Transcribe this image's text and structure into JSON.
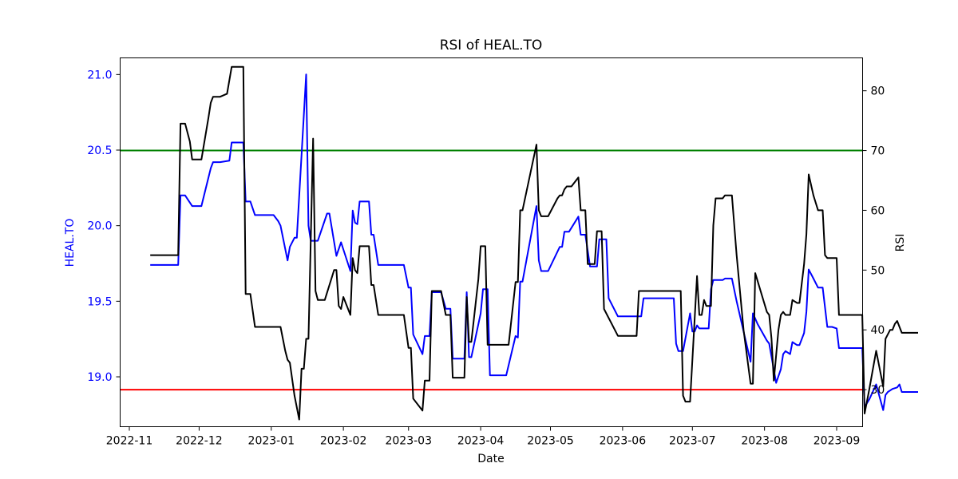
{
  "chart_data": {
    "type": "line",
    "title": "RSI of HEAL.TO",
    "xlabel": "Date",
    "ylabel_left": "HEAL.TO",
    "ylabel_right": "RSI",
    "x_ticks": [
      "2022-11",
      "2022-12",
      "2023-01",
      "2023-02",
      "2023-03",
      "2023-04",
      "2023-05",
      "2023-06",
      "2023-07",
      "2023-08",
      "2023-09"
    ],
    "y_left_ticks": [
      "19.0",
      "19.5",
      "20.0",
      "20.5",
      "21.0"
    ],
    "y_right_ticks": [
      "30",
      "40",
      "50",
      "60",
      "70",
      "80"
    ],
    "ylim_left": [
      18.67,
      21.11
    ],
    "ylim_right": [
      23.8,
      85.5
    ],
    "colors": {
      "price": "#0000ff",
      "rsi": "#000000",
      "overbought": "#008000",
      "oversold": "#ff0000",
      "left_axis_text": "#0000ff"
    },
    "thresholds": {
      "overbought": 70,
      "oversold": 30
    },
    "price": [
      [
        "2022-11-10",
        19.74
      ],
      [
        "2022-11-22",
        19.74
      ],
      [
        "2022-11-23",
        20.2
      ],
      [
        "2022-11-25",
        20.2
      ],
      [
        "2022-11-28",
        20.13
      ],
      [
        "2022-12-02",
        20.13
      ],
      [
        "2022-12-06",
        20.38
      ],
      [
        "2022-12-07",
        20.42
      ],
      [
        "2022-12-10",
        20.42
      ],
      [
        "2022-12-14",
        20.43
      ],
      [
        "2022-12-15",
        20.55
      ],
      [
        "2022-12-20",
        20.55
      ],
      [
        "2022-12-21",
        20.16
      ],
      [
        "2022-12-23",
        20.16
      ],
      [
        "2022-12-25",
        20.07
      ],
      [
        "2023-01-02",
        20.07
      ],
      [
        "2023-01-04",
        20.03
      ],
      [
        "2023-01-05",
        20.0
      ],
      [
        "2023-01-08",
        19.77
      ],
      [
        "2023-01-09",
        19.86
      ],
      [
        "2023-01-11",
        19.92
      ],
      [
        "2023-01-12",
        19.92
      ],
      [
        "2023-01-16",
        21.0
      ],
      [
        "2023-01-17",
        20.0
      ],
      [
        "2023-01-18",
        19.9
      ],
      [
        "2023-01-21",
        19.9
      ],
      [
        "2023-01-25",
        20.08
      ],
      [
        "2023-01-26",
        20.08
      ],
      [
        "2023-01-29",
        19.8
      ],
      [
        "2023-01-31",
        19.89
      ],
      [
        "2023-02-04",
        19.7
      ],
      [
        "2023-02-05",
        20.1
      ],
      [
        "2023-02-06",
        20.02
      ],
      [
        "2023-02-07",
        20.01
      ],
      [
        "2023-02-08",
        20.16
      ],
      [
        "2023-02-12",
        20.16
      ],
      [
        "2023-02-13",
        19.94
      ],
      [
        "2023-02-14",
        19.94
      ],
      [
        "2023-02-16",
        19.74
      ],
      [
        "2023-02-27",
        19.74
      ],
      [
        "2023-03-01",
        19.59
      ],
      [
        "2023-03-02",
        19.59
      ],
      [
        "2023-03-03",
        19.28
      ],
      [
        "2023-03-07",
        19.15
      ],
      [
        "2023-03-08",
        19.27
      ],
      [
        "2023-03-10",
        19.27
      ],
      [
        "2023-03-11",
        19.56
      ],
      [
        "2023-03-15",
        19.56
      ],
      [
        "2023-03-17",
        19.45
      ],
      [
        "2023-03-19",
        19.45
      ],
      [
        "2023-03-20",
        19.12
      ],
      [
        "2023-03-25",
        19.12
      ],
      [
        "2023-03-26",
        19.56
      ],
      [
        "2023-03-27",
        19.13
      ],
      [
        "2023-03-28",
        19.13
      ],
      [
        "2023-04-01",
        19.42
      ],
      [
        "2023-04-02",
        19.58
      ],
      [
        "2023-04-04",
        19.58
      ],
      [
        "2023-04-05",
        19.01
      ],
      [
        "2023-04-12",
        19.01
      ],
      [
        "2023-04-16",
        19.27
      ],
      [
        "2023-04-17",
        19.26
      ],
      [
        "2023-04-18",
        19.63
      ],
      [
        "2023-04-19",
        19.63
      ],
      [
        "2023-04-25",
        20.13
      ],
      [
        "2023-04-26",
        19.77
      ],
      [
        "2023-04-27",
        19.7
      ],
      [
        "2023-04-30",
        19.7
      ],
      [
        "2023-05-05",
        19.86
      ],
      [
        "2023-05-06",
        19.86
      ],
      [
        "2023-05-07",
        19.96
      ],
      [
        "2023-05-09",
        19.96
      ],
      [
        "2023-05-13",
        20.06
      ],
      [
        "2023-05-14",
        19.94
      ],
      [
        "2023-05-16",
        19.94
      ],
      [
        "2023-05-18",
        19.73
      ],
      [
        "2023-05-21",
        19.73
      ],
      [
        "2023-05-22",
        19.91
      ],
      [
        "2023-05-25",
        19.91
      ],
      [
        "2023-05-26",
        19.52
      ],
      [
        "2023-05-30",
        19.4
      ],
      [
        "2023-06-09",
        19.4
      ],
      [
        "2023-06-10",
        19.52
      ],
      [
        "2023-06-23",
        19.52
      ],
      [
        "2023-06-24",
        19.22
      ],
      [
        "2023-06-25",
        19.17
      ],
      [
        "2023-06-27",
        19.17
      ],
      [
        "2023-06-30",
        19.42
      ],
      [
        "2023-07-01",
        19.3
      ],
      [
        "2023-07-02",
        19.3
      ],
      [
        "2023-07-03",
        19.34
      ],
      [
        "2023-07-04",
        19.32
      ],
      [
        "2023-07-08",
        19.32
      ],
      [
        "2023-07-09",
        19.58
      ],
      [
        "2023-07-10",
        19.64
      ],
      [
        "2023-07-14",
        19.64
      ],
      [
        "2023-07-15",
        19.65
      ],
      [
        "2023-07-18",
        19.65
      ],
      [
        "2023-07-20",
        19.5
      ],
      [
        "2023-07-23",
        19.3
      ],
      [
        "2023-07-26",
        19.1
      ],
      [
        "2023-07-27",
        19.42
      ],
      [
        "2023-07-29",
        19.35
      ],
      [
        "2023-08-02",
        19.24
      ],
      [
        "2023-08-03",
        19.22
      ],
      [
        "2023-08-06",
        18.96
      ],
      [
        "2023-08-08",
        19.05
      ],
      [
        "2023-08-09",
        19.15
      ],
      [
        "2023-08-10",
        19.17
      ],
      [
        "2023-08-12",
        19.15
      ],
      [
        "2023-08-13",
        19.23
      ],
      [
        "2023-08-15",
        19.21
      ],
      [
        "2023-08-16",
        19.21
      ],
      [
        "2023-08-18",
        19.29
      ],
      [
        "2023-08-19",
        19.43
      ],
      [
        "2023-08-20",
        19.71
      ],
      [
        "2023-08-22",
        19.65
      ],
      [
        "2023-08-24",
        19.59
      ],
      [
        "2023-08-26",
        19.59
      ],
      [
        "2023-08-28",
        19.33
      ],
      [
        "2023-08-30",
        19.33
      ],
      [
        "2023-09-01",
        19.32
      ],
      [
        "2023-09-02",
        19.19
      ],
      [
        "2023-09-12",
        19.19
      ],
      [
        "2023-09-13",
        18.8
      ],
      [
        "2023-09-15",
        18.85
      ],
      [
        "2023-09-18",
        18.95
      ],
      [
        "2023-09-21",
        18.78
      ],
      [
        "2023-09-22",
        18.88
      ],
      [
        "2023-09-23",
        18.9
      ],
      [
        "2023-09-25",
        18.92
      ],
      [
        "2023-09-27",
        18.93
      ],
      [
        "2023-09-28",
        18.95
      ],
      [
        "2023-09-29",
        18.9
      ],
      [
        "2023-10-06",
        18.9
      ]
    ],
    "rsi": [
      [
        "2022-11-10",
        52.5
      ],
      [
        "2022-11-22",
        52.5
      ],
      [
        "2022-11-23",
        74.5
      ],
      [
        "2022-11-25",
        74.5
      ],
      [
        "2022-11-27",
        71.5
      ],
      [
        "2022-11-28",
        68.5
      ],
      [
        "2022-12-02",
        68.5
      ],
      [
        "2022-12-05",
        75.5
      ],
      [
        "2022-12-06",
        78.0
      ],
      [
        "2022-12-07",
        79.0
      ],
      [
        "2022-12-10",
        79.0
      ],
      [
        "2022-12-13",
        79.5
      ],
      [
        "2022-12-15",
        84.0
      ],
      [
        "2022-12-20",
        84.0
      ],
      [
        "2022-12-21",
        46.0
      ],
      [
        "2022-12-23",
        46.0
      ],
      [
        "2022-12-25",
        40.5
      ],
      [
        "2023-01-05",
        40.5
      ],
      [
        "2023-01-07",
        36.5
      ],
      [
        "2023-01-08",
        35.0
      ],
      [
        "2023-01-09",
        34.5
      ],
      [
        "2023-01-11",
        29.0
      ],
      [
        "2023-01-13",
        25.0
      ],
      [
        "2023-01-14",
        33.5
      ],
      [
        "2023-01-15",
        33.5
      ],
      [
        "2023-01-16",
        38.5
      ],
      [
        "2023-01-17",
        38.5
      ],
      [
        "2023-01-19",
        72.0
      ],
      [
        "2023-01-20",
        46.5
      ],
      [
        "2023-01-21",
        45.0
      ],
      [
        "2023-01-24",
        45.0
      ],
      [
        "2023-01-28",
        50.0
      ],
      [
        "2023-01-29",
        50.0
      ],
      [
        "2023-01-30",
        44.0
      ],
      [
        "2023-01-31",
        43.5
      ],
      [
        "2023-02-01",
        45.5
      ],
      [
        "2023-02-04",
        42.5
      ],
      [
        "2023-02-05",
        52.0
      ],
      [
        "2023-02-06",
        50.0
      ],
      [
        "2023-02-07",
        49.5
      ],
      [
        "2023-02-08",
        54.0
      ],
      [
        "2023-02-12",
        54.0
      ],
      [
        "2023-02-13",
        47.5
      ],
      [
        "2023-02-14",
        47.5
      ],
      [
        "2023-02-16",
        42.5
      ],
      [
        "2023-02-27",
        42.5
      ],
      [
        "2023-03-01",
        37.0
      ],
      [
        "2023-03-02",
        37.0
      ],
      [
        "2023-03-03",
        28.5
      ],
      [
        "2023-03-07",
        26.5
      ],
      [
        "2023-03-08",
        31.5
      ],
      [
        "2023-03-10",
        31.5
      ],
      [
        "2023-03-11",
        46.5
      ],
      [
        "2023-03-15",
        46.5
      ],
      [
        "2023-03-17",
        42.5
      ],
      [
        "2023-03-19",
        42.5
      ],
      [
        "2023-03-20",
        32.0
      ],
      [
        "2023-03-25",
        32.0
      ],
      [
        "2023-03-26",
        45.5
      ],
      [
        "2023-03-27",
        38.0
      ],
      [
        "2023-03-28",
        38.0
      ],
      [
        "2023-03-31",
        48.5
      ],
      [
        "2023-04-01",
        54.0
      ],
      [
        "2023-04-03",
        54.0
      ],
      [
        "2023-04-04",
        37.5
      ],
      [
        "2023-04-13",
        37.5
      ],
      [
        "2023-04-16",
        48.0
      ],
      [
        "2023-04-17",
        48.0
      ],
      [
        "2023-04-18",
        60.0
      ],
      [
        "2023-04-19",
        60.0
      ],
      [
        "2023-04-25",
        71.0
      ],
      [
        "2023-04-26",
        60.0
      ],
      [
        "2023-04-27",
        59.0
      ],
      [
        "2023-04-30",
        59.0
      ],
      [
        "2023-05-04",
        62.0
      ],
      [
        "2023-05-05",
        62.5
      ],
      [
        "2023-05-06",
        62.5
      ],
      [
        "2023-05-07",
        63.5
      ],
      [
        "2023-05-08",
        64.0
      ],
      [
        "2023-05-10",
        64.0
      ],
      [
        "2023-05-13",
        65.5
      ],
      [
        "2023-05-14",
        60.0
      ],
      [
        "2023-05-16",
        60.0
      ],
      [
        "2023-05-17",
        51.0
      ],
      [
        "2023-05-20",
        51.0
      ],
      [
        "2023-05-21",
        56.5
      ],
      [
        "2023-05-23",
        56.5
      ],
      [
        "2023-05-24",
        43.5
      ],
      [
        "2023-05-30",
        39.0
      ],
      [
        "2023-06-07",
        39.0
      ],
      [
        "2023-06-08",
        46.5
      ],
      [
        "2023-06-26",
        46.5
      ],
      [
        "2023-06-27",
        29.0
      ],
      [
        "2023-06-28",
        28.0
      ],
      [
        "2023-06-30",
        28.0
      ],
      [
        "2023-07-03",
        49.0
      ],
      [
        "2023-07-04",
        42.5
      ],
      [
        "2023-07-05",
        42.5
      ],
      [
        "2023-07-06",
        45.0
      ],
      [
        "2023-07-07",
        44.0
      ],
      [
        "2023-07-09",
        44.0
      ],
      [
        "2023-07-10",
        57.5
      ],
      [
        "2023-07-11",
        62.0
      ],
      [
        "2023-07-14",
        62.0
      ],
      [
        "2023-07-15",
        62.5
      ],
      [
        "2023-07-18",
        62.5
      ],
      [
        "2023-07-20",
        52.5
      ],
      [
        "2023-07-23",
        40.0
      ],
      [
        "2023-07-26",
        31.0
      ],
      [
        "2023-07-27",
        31.0
      ],
      [
        "2023-07-28",
        49.5
      ],
      [
        "2023-08-02",
        43.0
      ],
      [
        "2023-08-03",
        42.5
      ],
      [
        "2023-08-04",
        38.5
      ],
      [
        "2023-08-05",
        31.5
      ],
      [
        "2023-08-07",
        40.0
      ],
      [
        "2023-08-08",
        42.5
      ],
      [
        "2023-08-09",
        43.0
      ],
      [
        "2023-08-10",
        42.5
      ],
      [
        "2023-08-12",
        42.5
      ],
      [
        "2023-08-13",
        45.0
      ],
      [
        "2023-08-15",
        44.5
      ],
      [
        "2023-08-16",
        44.5
      ],
      [
        "2023-08-18",
        51.0
      ],
      [
        "2023-08-19",
        56.0
      ],
      [
        "2023-08-20",
        66.0
      ],
      [
        "2023-08-22",
        62.5
      ],
      [
        "2023-08-24",
        60.0
      ],
      [
        "2023-08-26",
        60.0
      ],
      [
        "2023-08-27",
        52.5
      ],
      [
        "2023-08-28",
        52.0
      ],
      [
        "2023-08-31",
        52.0
      ],
      [
        "2023-09-01",
        52.0
      ],
      [
        "2023-09-02",
        42.5
      ],
      [
        "2023-09-12",
        42.5
      ],
      [
        "2023-09-13",
        26.0
      ],
      [
        "2023-09-15",
        30.0
      ],
      [
        "2023-09-18",
        36.5
      ],
      [
        "2023-09-21",
        30.5
      ],
      [
        "2023-09-22",
        38.5
      ],
      [
        "2023-09-24",
        40.0
      ],
      [
        "2023-09-25",
        40.0
      ],
      [
        "2023-09-26",
        41.0
      ],
      [
        "2023-09-27",
        41.5
      ],
      [
        "2023-09-28",
        40.5
      ],
      [
        "2023-09-29",
        39.5
      ],
      [
        "2023-10-06",
        39.5
      ]
    ]
  }
}
